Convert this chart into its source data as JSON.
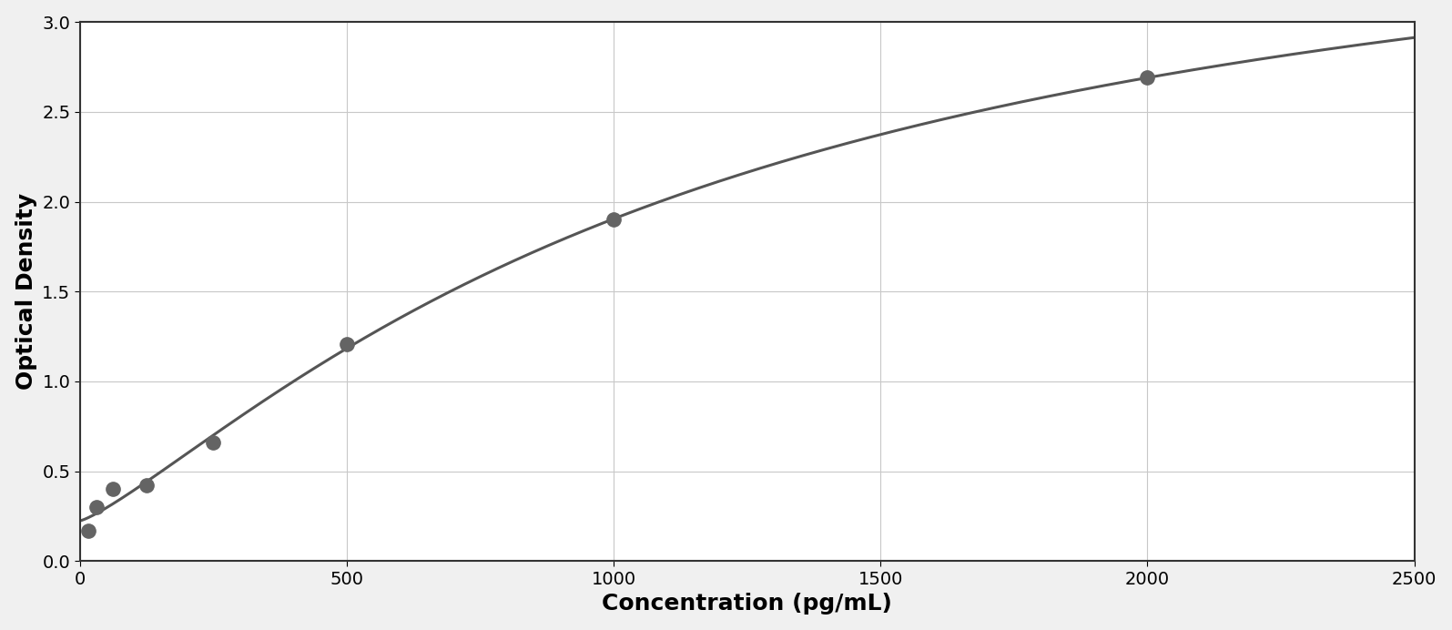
{
  "x_data": [
    15.6,
    31.25,
    62.5,
    125,
    250,
    500,
    1000,
    2000
  ],
  "y_data": [
    0.17,
    0.3,
    0.4,
    0.42,
    0.66,
    1.21,
    1.9,
    2.69
  ],
  "xlabel": "Concentration (pg/mL)",
  "ylabel": "Optical Density",
  "xlim": [
    0,
    2500
  ],
  "ylim": [
    0,
    3
  ],
  "xticks": [
    0,
    500,
    1000,
    1500,
    2000,
    2500
  ],
  "yticks": [
    0,
    0.5,
    1.0,
    1.5,
    2.0,
    2.5,
    3.0
  ],
  "data_color": "#646464",
  "line_color": "#555555",
  "background_color": "#f0f0f0",
  "plot_bg_color": "#ffffff",
  "outer_bg_color": "#f0f0f0",
  "border_color": "#333333",
  "grid_color": "#c8c8c8",
  "xlabel_fontsize": 18,
  "ylabel_fontsize": 18,
  "tick_fontsize": 14,
  "xlabel_fontweight": "bold",
  "ylabel_fontweight": "bold",
  "marker_size": 11,
  "line_width": 2.2
}
